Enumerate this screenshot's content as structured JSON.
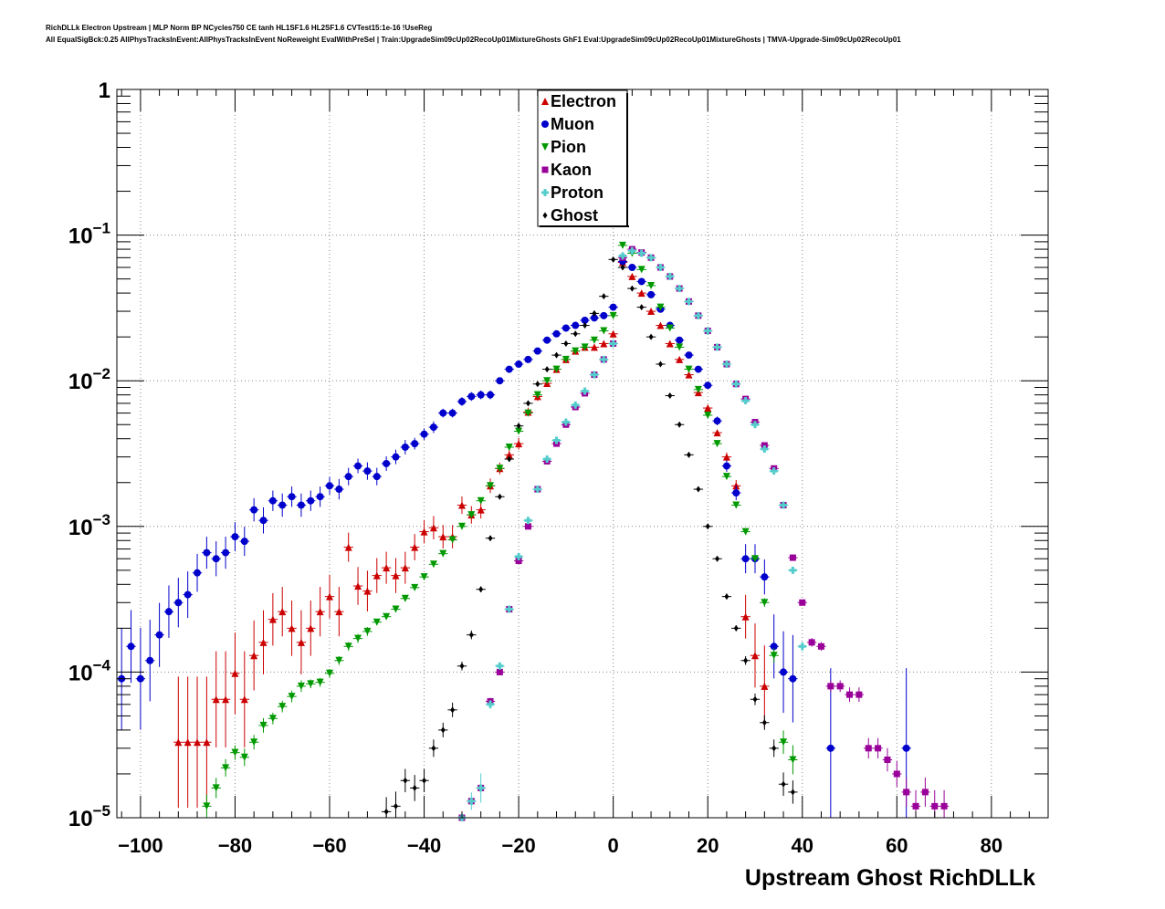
{
  "header": {
    "line1": "RichDLLk Electron Upstream | MLP Norm BP NCycles750 CE tanh HL1SF1.6 HL2SF1.6 CVTest15:1e-16 !UseReg",
    "line2": "All EqualSigBck:0.25 AllPhysTracksInEvent:AllPhysTracksInEvent NoReweight EvalWithPreSel | Train:UpgradeSim09cUp02RecoUp01MixtureGhosts GhF1 Eval:UpgradeSim09cUp02RecoUp01MixtureGhosts | TMVA-Upgrade-Sim09cUp02RecoUp01"
  },
  "chart_data": {
    "type": "scatter",
    "xlabel": "Upstream Ghost RichDLLk",
    "ylabel": "",
    "xlim": [
      -105,
      92
    ],
    "ylim": [
      1e-05,
      1
    ],
    "yscale": "log",
    "grid": true,
    "legend_position": "top-center",
    "x_ticks": [
      {
        "v": -100,
        "label": "−100"
      },
      {
        "v": -80,
        "label": "−80"
      },
      {
        "v": -60,
        "label": "−60"
      },
      {
        "v": -40,
        "label": "−40"
      },
      {
        "v": -20,
        "label": "−20"
      },
      {
        "v": 0,
        "label": "0"
      },
      {
        "v": 20,
        "label": "20"
      },
      {
        "v": 40,
        "label": "40"
      },
      {
        "v": 60,
        "label": "60"
      },
      {
        "v": 80,
        "label": "80"
      }
    ],
    "y_ticks": [
      {
        "v": 1,
        "base": "1",
        "exp": ""
      },
      {
        "v": 0.1,
        "base": "10",
        "exp": "−1"
      },
      {
        "v": 0.01,
        "base": "10",
        "exp": "−2"
      },
      {
        "v": 0.001,
        "base": "10",
        "exp": "−3"
      },
      {
        "v": 0.0001,
        "base": "10",
        "exp": "−4"
      },
      {
        "v": 1e-05,
        "base": "10",
        "exp": "−5"
      }
    ],
    "series": [
      {
        "name": "Electron",
        "marker": "triangle-up",
        "color": "#cc0000",
        "x": [
          -92,
          -90,
          -88,
          -86,
          -84,
          -82,
          -80,
          -78,
          -76,
          -74,
          -72,
          -70,
          -68,
          -66,
          -64,
          -62,
          -60,
          -58,
          -56,
          -54,
          -52,
          -50,
          -48,
          -46,
          -44,
          -42,
          -40,
          -38,
          -36,
          -34,
          -32,
          -30,
          -28,
          -26,
          -24,
          -22,
          -20,
          -18,
          -16,
          -14,
          -12,
          -10,
          -8,
          -6,
          -4,
          -2,
          0,
          2,
          4,
          6,
          8,
          10,
          12,
          14,
          16,
          18,
          20,
          22,
          24,
          26,
          28,
          30,
          32
        ],
        "y": [
          3.3e-05,
          3.3e-05,
          3.3e-05,
          3.3e-05,
          6.5e-05,
          6.5e-05,
          9.8e-05,
          6.5e-05,
          0.00013,
          0.00016,
          0.00023,
          0.00026,
          0.0002,
          0.00016,
          0.0002,
          0.00026,
          0.00033,
          0.00026,
          0.00072,
          0.00039,
          0.00036,
          0.00046,
          0.00052,
          0.00046,
          0.00052,
          0.00072,
          0.00092,
          0.00098,
          0.00085,
          0.00085,
          0.0014,
          0.0012,
          0.0013,
          0.0019,
          0.0025,
          0.0031,
          0.0037,
          0.0061,
          0.0078,
          0.0096,
          0.012,
          0.014,
          0.016,
          0.017,
          0.017,
          0.018,
          0.021,
          0.065,
          0.052,
          0.04,
          0.03,
          0.024,
          0.018,
          0.014,
          0.011,
          0.0083,
          0.0065,
          0.0044,
          0.003,
          0.0019,
          0.00024,
          0.00013,
          8e-05
        ],
        "err": [
          0.45,
          0.45,
          0.45,
          0.45,
          0.33,
          0.33,
          0.28,
          0.33,
          0.24,
          0.22,
          0.18,
          0.17,
          0.19,
          0.22,
          0.19,
          0.17,
          0.15,
          0.17,
          0.1,
          0.13,
          0.14,
          0.12,
          0.11,
          0.12,
          0.11,
          0.09,
          0.08,
          0.08,
          0.08,
          0.08,
          0.06,
          0.06,
          0.06,
          0.05,
          0.04,
          0.04,
          0.04,
          0.03,
          0.03,
          0.02,
          0.02,
          0.02,
          0.02,
          0.02,
          0.02,
          0.02,
          0.02,
          0.01,
          0.01,
          0.01,
          0.01,
          0.01,
          0.01,
          0.01,
          0.02,
          0.02,
          0.02,
          0.02,
          0.03,
          0.04,
          0.15,
          0.22,
          0.28
        ]
      },
      {
        "name": "Muon",
        "marker": "circle",
        "color": "#0000cc",
        "x": [
          -104,
          -102,
          -100,
          -98,
          -96,
          -94,
          -92,
          -90,
          -88,
          -86,
          -84,
          -82,
          -80,
          -78,
          -76,
          -74,
          -72,
          -70,
          -68,
          -66,
          -64,
          -62,
          -60,
          -58,
          -56,
          -54,
          -52,
          -50,
          -48,
          -46,
          -44,
          -42,
          -40,
          -38,
          -36,
          -34,
          -32,
          -30,
          -28,
          -26,
          -24,
          -22,
          -20,
          -18,
          -16,
          -14,
          -12,
          -10,
          -8,
          -6,
          -4,
          -2,
          0,
          2,
          4,
          6,
          8,
          10,
          12,
          14,
          16,
          18,
          20,
          22,
          24,
          26,
          28,
          30,
          32,
          34,
          36,
          38,
          46,
          62
        ],
        "y": [
          9e-05,
          0.00015,
          9e-05,
          0.00012,
          0.00018,
          0.00026,
          0.0003,
          0.00034,
          0.00048,
          0.00066,
          0.0006,
          0.00066,
          0.00085,
          0.00079,
          0.0013,
          0.0011,
          0.0015,
          0.0014,
          0.0016,
          0.0014,
          0.0015,
          0.0016,
          0.0019,
          0.0018,
          0.0022,
          0.0026,
          0.0024,
          0.0022,
          0.0027,
          0.003,
          0.0035,
          0.0037,
          0.0043,
          0.0048,
          0.006,
          0.006,
          0.0072,
          0.0078,
          0.008,
          0.008,
          0.01,
          0.012,
          0.013,
          0.014,
          0.016,
          0.019,
          0.021,
          0.023,
          0.024,
          0.026,
          0.027,
          0.028,
          0.032,
          0.066,
          0.06,
          0.048,
          0.039,
          0.031,
          0.024,
          0.019,
          0.015,
          0.012,
          0.0093,
          0.0053,
          0.0026,
          0.0017,
          0.0006,
          0.0006,
          0.00045,
          0.00015,
          0.0001,
          9e-05,
          3e-05,
          3e-05
        ],
        "err": [
          0.35,
          0.25,
          0.35,
          0.28,
          0.22,
          0.18,
          0.17,
          0.16,
          0.13,
          0.11,
          0.12,
          0.11,
          0.1,
          0.1,
          0.08,
          0.09,
          0.07,
          0.08,
          0.07,
          0.08,
          0.07,
          0.07,
          0.06,
          0.07,
          0.06,
          0.05,
          0.06,
          0.06,
          0.05,
          0.05,
          0.05,
          0.04,
          0.04,
          0.04,
          0.03,
          0.03,
          0.03,
          0.03,
          0.03,
          0.03,
          0.02,
          0.02,
          0.02,
          0.02,
          0.02,
          0.02,
          0.02,
          0.02,
          0.02,
          0.02,
          0.02,
          0.02,
          0.02,
          0.01,
          0.01,
          0.01,
          0.01,
          0.01,
          0.01,
          0.01,
          0.02,
          0.02,
          0.02,
          0.03,
          0.04,
          0.05,
          0.1,
          0.1,
          0.12,
          0.22,
          0.28,
          0.3,
          0.55,
          0.55
        ]
      },
      {
        "name": "Pion",
        "marker": "triangle-down",
        "color": "#009900",
        "x": [
          -86,
          -84,
          -82,
          -80,
          -78,
          -76,
          -74,
          -72,
          -70,
          -68,
          -66,
          -64,
          -62,
          -60,
          -58,
          -56,
          -54,
          -52,
          -50,
          -48,
          -46,
          -44,
          -42,
          -40,
          -38,
          -36,
          -34,
          -32,
          -30,
          -28,
          -26,
          -24,
          -22,
          -20,
          -18,
          -16,
          -14,
          -12,
          -10,
          -8,
          -6,
          -4,
          -2,
          0,
          2,
          4,
          6,
          8,
          10,
          12,
          14,
          16,
          18,
          20,
          22,
          24,
          26,
          28,
          30,
          32,
          34,
          36,
          38
        ],
        "y": [
          1.2e-05,
          1.6e-05,
          2.2e-05,
          2.8e-05,
          2.6e-05,
          3.3e-05,
          4.3e-05,
          4.8e-05,
          5.8e-05,
          6.8e-05,
          8e-05,
          8.3e-05,
          8.5e-05,
          9.8e-05,
          0.00012,
          0.00015,
          0.00017,
          0.00019,
          0.00022,
          0.00024,
          0.00027,
          0.00032,
          0.00038,
          0.00045,
          0.00055,
          0.00065,
          0.00081,
          0.001,
          0.0012,
          0.0015,
          0.0019,
          0.0025,
          0.0035,
          0.0045,
          0.006,
          0.008,
          0.01,
          0.012,
          0.014,
          0.016,
          0.017,
          0.019,
          0.022,
          0.028,
          0.085,
          0.075,
          0.058,
          0.045,
          0.032,
          0.023,
          0.017,
          0.012,
          0.0087,
          0.0058,
          0.0037,
          0.0022,
          0.0014,
          0.00092,
          0.0006,
          0.0003,
          0.00013,
          3.3e-05,
          2.5e-05
        ],
        "err": [
          0.08,
          0.07,
          0.06,
          0.05,
          0.06,
          0.05,
          0.05,
          0.04,
          0.04,
          0.04,
          0.04,
          0.03,
          0.03,
          0.03,
          0.03,
          0.03,
          0.03,
          0.03,
          0.02,
          0.02,
          0.02,
          0.02,
          0.02,
          0.02,
          0.02,
          0.02,
          0.02,
          0.02,
          0.01,
          0.01,
          0.01,
          0.01,
          0.01,
          0.01,
          0.01,
          0.01,
          0.01,
          0.01,
          0.01,
          0.01,
          0.01,
          0.01,
          0.01,
          0.01,
          0.01,
          0.01,
          0.01,
          0.01,
          0.01,
          0.01,
          0.01,
          0.01,
          0.01,
          0.01,
          0.01,
          0.01,
          0.02,
          0.02,
          0.02,
          0.03,
          0.05,
          0.08,
          0.1
        ]
      },
      {
        "name": "Kaon",
        "marker": "square",
        "color": "#990099",
        "x": [
          -32,
          -30,
          -28,
          -26,
          -24,
          -22,
          -20,
          -18,
          -16,
          -14,
          -12,
          -10,
          -8,
          -6,
          -4,
          -2,
          0,
          2,
          4,
          6,
          8,
          10,
          12,
          14,
          16,
          18,
          20,
          22,
          24,
          26,
          28,
          30,
          32,
          34,
          36,
          38,
          40,
          42,
          44,
          46,
          48,
          50,
          52,
          54,
          56,
          58,
          60,
          62,
          64,
          66,
          68,
          70
        ],
        "y": [
          1e-05,
          1.3e-05,
          1.6e-05,
          6.3e-05,
          0.0001,
          0.00027,
          0.00058,
          0.001,
          0.0018,
          0.0028,
          0.0037,
          0.005,
          0.0066,
          0.0082,
          0.011,
          0.014,
          0.018,
          0.07,
          0.08,
          0.076,
          0.07,
          0.06,
          0.052,
          0.043,
          0.035,
          0.028,
          0.022,
          0.017,
          0.013,
          0.0095,
          0.0075,
          0.0052,
          0.0036,
          0.0025,
          0.0014,
          0.00061,
          0.0003,
          0.00016,
          0.00015,
          8e-05,
          8e-05,
          7e-05,
          7e-05,
          3e-05,
          3e-05,
          2.5e-05,
          2e-05,
          1.5e-05,
          1.2e-05,
          1.5e-05,
          1.2e-05,
          1.2e-05
        ],
        "err": [
          0.0,
          0.0,
          0.0,
          0.02,
          0.02,
          0.01,
          0.01,
          0.01,
          0.01,
          0.01,
          0.01,
          0.01,
          0.01,
          0.01,
          0.01,
          0.01,
          0.01,
          0.01,
          0.01,
          0.01,
          0.01,
          0.01,
          0.01,
          0.01,
          0.01,
          0.01,
          0.01,
          0.01,
          0.01,
          0.01,
          0.01,
          0.01,
          0.01,
          0.01,
          0.01,
          0.02,
          0.02,
          0.03,
          0.03,
          0.04,
          0.04,
          0.05,
          0.05,
          0.07,
          0.07,
          0.08,
          0.09,
          0.1,
          0.11,
          0.1,
          0.11,
          0.11
        ]
      },
      {
        "name": "Proton",
        "marker": "cross",
        "color": "#55cccc",
        "x": [
          -32,
          -30,
          -28,
          -26,
          -24,
          -22,
          -20,
          -18,
          -16,
          -14,
          -12,
          -10,
          -8,
          -6,
          -4,
          -2,
          0,
          2,
          4,
          6,
          8,
          10,
          12,
          14,
          16,
          18,
          20,
          22,
          24,
          26,
          28,
          30,
          32,
          34,
          36,
          38,
          40
        ],
        "y": [
          1e-05,
          1.3e-05,
          1.6e-05,
          6e-05,
          0.00011,
          0.00027,
          0.00062,
          0.0011,
          0.0018,
          0.0029,
          0.0039,
          0.0052,
          0.0068,
          0.0085,
          0.011,
          0.014,
          0.018,
          0.072,
          0.078,
          0.075,
          0.07,
          0.06,
          0.052,
          0.043,
          0.035,
          0.028,
          0.022,
          0.017,
          0.013,
          0.0095,
          0.0073,
          0.005,
          0.0034,
          0.0024,
          0.0014,
          0.0005,
          0.00015
        ],
        "err": [
          0.0,
          0.06,
          0.1,
          0.03,
          0.02,
          0.01,
          0.01,
          0.01,
          0.01,
          0.01,
          0.01,
          0.01,
          0.01,
          0.01,
          0.01,
          0.01,
          0.01,
          0.01,
          0.01,
          0.01,
          0.01,
          0.01,
          0.01,
          0.01,
          0.01,
          0.01,
          0.01,
          0.01,
          0.01,
          0.01,
          0.01,
          0.01,
          0.01,
          0.01,
          0.01,
          0.02,
          0.03
        ]
      },
      {
        "name": "Ghost",
        "marker": "diamond",
        "color": "#000000",
        "x": [
          -48,
          -46,
          -44,
          -42,
          -40,
          -38,
          -36,
          -34,
          -32,
          -30,
          -28,
          -26,
          -24,
          -22,
          -20,
          -18,
          -16,
          -14,
          -12,
          -10,
          -8,
          -6,
          -4,
          -2,
          0,
          2,
          4,
          6,
          8,
          10,
          12,
          14,
          16,
          18,
          20,
          22,
          24,
          26,
          28,
          30,
          32,
          34,
          36,
          38
        ],
        "y": [
          1.1e-05,
          1.2e-05,
          1.8e-05,
          1.6e-05,
          1.8e-05,
          3e-05,
          4e-05,
          5.5e-05,
          0.00011,
          0.00018,
          0.00037,
          0.00083,
          0.0016,
          0.0029,
          0.0049,
          0.007,
          0.0095,
          0.012,
          0.015,
          0.018,
          0.021,
          0.024,
          0.029,
          0.038,
          0.068,
          0.06,
          0.043,
          0.032,
          0.02,
          0.013,
          0.0079,
          0.005,
          0.0031,
          0.0018,
          0.001,
          0.0006,
          0.00033,
          0.0002,
          0.00012,
          6.5e-05,
          4.5e-05,
          3e-05,
          1.7e-05,
          1.5e-05
        ],
        "err": [
          0.1,
          0.1,
          0.08,
          0.09,
          0.08,
          0.06,
          0.05,
          0.05,
          0.03,
          0.03,
          0.02,
          0.01,
          0.01,
          0.01,
          0.01,
          0.01,
          0.01,
          0.01,
          0.01,
          0.01,
          0.01,
          0.01,
          0.01,
          0.01,
          0.01,
          0.01,
          0.01,
          0.01,
          0.01,
          0.01,
          0.01,
          0.01,
          0.01,
          0.01,
          0.01,
          0.01,
          0.02,
          0.02,
          0.03,
          0.04,
          0.05,
          0.06,
          0.08,
          0.08
        ]
      }
    ]
  }
}
